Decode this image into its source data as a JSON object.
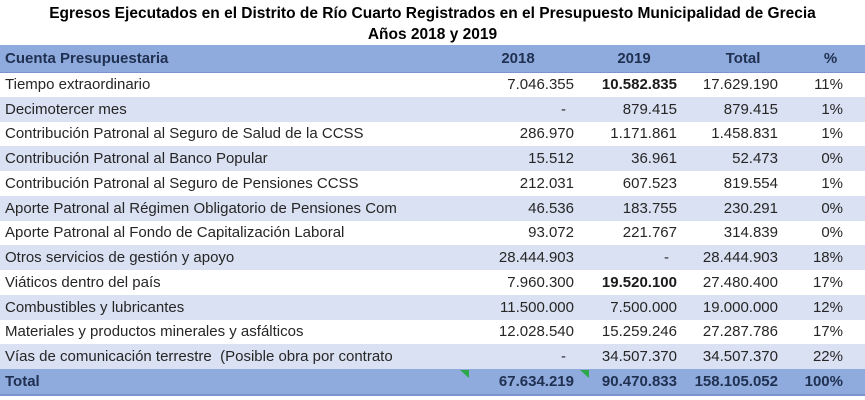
{
  "title": {
    "line1": "Egresos Ejecutados en el Distrito de Río Cuarto Registrados en el Presupuesto Municipalidad de Grecia",
    "line2": "Años 2018 y 2019"
  },
  "table": {
    "header": {
      "cuenta": "Cuenta Presupuestaria",
      "y2018": "2018",
      "y2019": "2019",
      "total": "Total",
      "pct": "%"
    },
    "rows": [
      {
        "cuenta": "Tiempo extraordinario",
        "y2018": "7.046.355",
        "y2019": "10.582.835",
        "total": "17.629.190",
        "pct": "11%",
        "bold2019": true
      },
      {
        "cuenta": "Decimotercer mes",
        "y2018": "-",
        "y2019": "879.415",
        "total": "879.415",
        "pct": "1%",
        "bold2019": false
      },
      {
        "cuenta": "Contribución Patronal al Seguro de Salud de la CCSS",
        "y2018": "286.970",
        "y2019": "1.171.861",
        "total": "1.458.831",
        "pct": "1%",
        "bold2019": false
      },
      {
        "cuenta": "Contribución Patronal al Banco Popular",
        "y2018": "15.512",
        "y2019": "36.961",
        "total": "52.473",
        "pct": "0%",
        "bold2019": false
      },
      {
        "cuenta": "Contribución Patronal al Seguro de Pensiones CCSS",
        "y2018": "212.031",
        "y2019": "607.523",
        "total": "819.554",
        "pct": "1%",
        "bold2019": false
      },
      {
        "cuenta": "Aporte Patronal al Régimen Obligatorio de Pensiones Com",
        "y2018": "46.536",
        "y2019": "183.755",
        "total": "230.291",
        "pct": "0%",
        "bold2019": false
      },
      {
        "cuenta": "Aporte Patronal al Fondo de Capitalización Laboral",
        "y2018": "93.072",
        "y2019": "221.767",
        "total": "314.839",
        "pct": "0%",
        "bold2019": false
      },
      {
        "cuenta": "Otros servicios de gestión y apoyo",
        "y2018": "28.444.903",
        "y2019": "-",
        "total": "28.444.903",
        "pct": "18%",
        "bold2019": false
      },
      {
        "cuenta": "Viáticos dentro del país",
        "y2018": "7.960.300",
        "y2019": "19.520.100",
        "total": "27.480.400",
        "pct": "17%",
        "bold2019": true
      },
      {
        "cuenta": "Combustibles y lubricantes",
        "y2018": "11.500.000",
        "y2019": "7.500.000",
        "total": "19.000.000",
        "pct": "12%",
        "bold2019": false
      },
      {
        "cuenta": "Materiales y productos minerales y asfálticos",
        "y2018": "12.028.540",
        "y2019": "15.259.246",
        "total": "27.287.786",
        "pct": "17%",
        "bold2019": false
      },
      {
        "cuenta": "Vías de comunicación terrestre  (Posible obra por contrato",
        "y2018": "-",
        "y2019": "34.507.370",
        "total": "34.507.370",
        "pct": "22%",
        "bold2019": false
      }
    ],
    "total": {
      "cuenta": "Total",
      "y2018": "67.634.219",
      "y2019": "90.470.833",
      "total": "158.105.052",
      "pct": "100%"
    }
  },
  "icons": {
    "flag_2018": "excel-error-triangle",
    "flag_2019": "excel-error-triangle"
  },
  "colors": {
    "header_bg": "#8FAADC",
    "stripe_bg": "#D9E1F2",
    "total_bg": "#8FAADC",
    "flag_green": "#2DA84A",
    "rule": "#7b94cd"
  },
  "chart_data": {
    "type": "table",
    "title": "Egresos Ejecutados en el Distrito de Río Cuarto Registrados en el Presupuesto Municipalidad de Grecia — Años 2018 y 2019",
    "columns": [
      "Cuenta Presupuestaria",
      "2018",
      "2019",
      "Total",
      "%"
    ],
    "rows": [
      [
        "Tiempo extraordinario",
        7046355,
        10582835,
        17629190,
        "11%"
      ],
      [
        "Decimotercer mes",
        null,
        879415,
        879415,
        "1%"
      ],
      [
        "Contribución Patronal al Seguro de Salud de la CCSS",
        286970,
        1171861,
        1458831,
        "1%"
      ],
      [
        "Contribución Patronal al Banco Popular",
        15512,
        36961,
        52473,
        "0%"
      ],
      [
        "Contribución Patronal al Seguro de Pensiones CCSS",
        212031,
        607523,
        819554,
        "1%"
      ],
      [
        "Aporte Patronal al Régimen Obligatorio de Pensiones Com",
        46536,
        183755,
        230291,
        "0%"
      ],
      [
        "Aporte Patronal al Fondo de Capitalización Laboral",
        93072,
        221767,
        314839,
        "0%"
      ],
      [
        "Otros servicios de gestión y apoyo",
        28444903,
        null,
        28444903,
        "18%"
      ],
      [
        "Viáticos dentro del país",
        7960300,
        19520100,
        27480400,
        "17%"
      ],
      [
        "Combustibles y lubricantes",
        11500000,
        7500000,
        19000000,
        "12%"
      ],
      [
        "Materiales y productos minerales y asfálticos",
        12028540,
        15259246,
        27287786,
        "17%"
      ],
      [
        "Vías de comunicación terrestre  (Posible obra por contrato",
        null,
        34507370,
        34507370,
        "22%"
      ]
    ],
    "totals": [
      "Total",
      67634219,
      90470833,
      158105052,
      "100%"
    ],
    "notes": "null = dash (no value). Bold cells in source: 2019 values for 'Tiempo extraordinario' and 'Viáticos dentro del país', plus entire Total row."
  }
}
